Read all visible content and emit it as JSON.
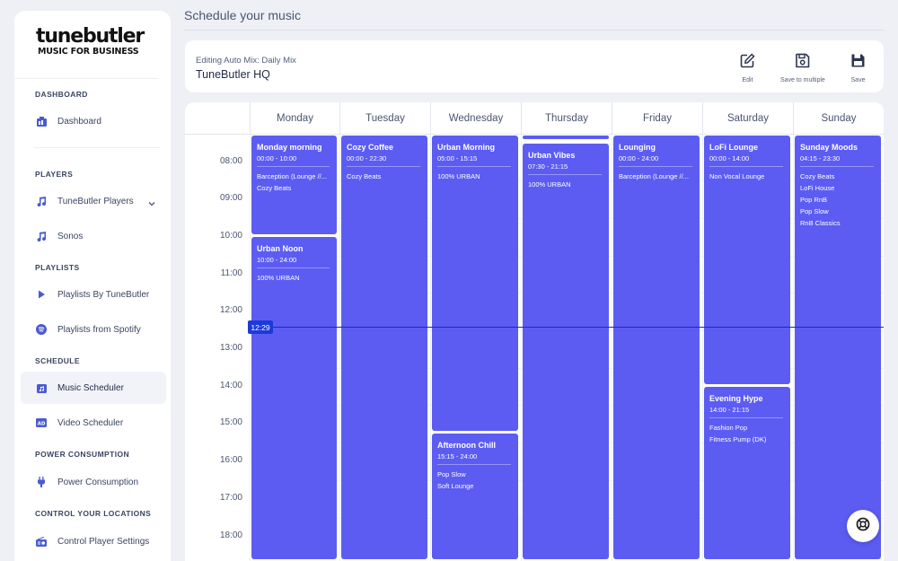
{
  "logo": {
    "line1": "tunebutler",
    "line2": "MUSIC FOR BUSINESS"
  },
  "sidebar": {
    "sections": [
      {
        "title": "DASHBOARD"
      },
      {
        "title": "PLAYERS"
      },
      {
        "title": "PLAYLISTS"
      },
      {
        "title": "SCHEDULE"
      },
      {
        "title": "POWER CONSUMPTION"
      },
      {
        "title": "CONTROL YOUR LOCATIONS"
      }
    ],
    "items": [
      {
        "label": "Dashboard",
        "icon": "dashboard-icon"
      },
      {
        "label": "TuneButler Players",
        "icon": "music-note-icon"
      },
      {
        "label": "Sonos",
        "icon": "music-note-icon"
      },
      {
        "label": "Playlists By TuneButler",
        "icon": "play-icon"
      },
      {
        "label": "Playlists from Spotify",
        "icon": "spotify-icon"
      },
      {
        "label": "Music Scheduler",
        "icon": "music-scheduler-icon",
        "active": true
      },
      {
        "label": "Video Scheduler",
        "icon": "ad-icon"
      },
      {
        "label": "Power Consumption",
        "icon": "plug-icon"
      },
      {
        "label": "Control Player Settings",
        "icon": "radio-icon"
      }
    ]
  },
  "header": {
    "title": "Schedule your music"
  },
  "editor": {
    "subtitle": "Editing Auto Mix: Daily Mix",
    "location": "TuneButler HQ",
    "actions": [
      {
        "label": "Edit",
        "icon": "edit-icon"
      },
      {
        "label": "Save to multiple",
        "icon": "save-multiple-icon"
      },
      {
        "label": "Save",
        "icon": "save-icon"
      }
    ]
  },
  "calendar": {
    "days": [
      "Monday",
      "Tuesday",
      "Wednesday",
      "Thursday",
      "Friday",
      "Saturday",
      "Sunday"
    ],
    "hours": [
      "08:00",
      "09:00",
      "10:00",
      "11:00",
      "12:00",
      "13:00",
      "14:00",
      "15:00",
      "16:00",
      "17:00",
      "18:00"
    ],
    "now": "12:29",
    "accent": "#5c5cf3",
    "events": [
      {
        "day": 0,
        "start": 0.0,
        "end": 10.0,
        "title": "Monday morning",
        "time": "00:00 - 10:00",
        "playlists": [
          "Barception (Lounge //...",
          "Cozy Beats"
        ]
      },
      {
        "day": 0,
        "start": 10.0,
        "end": 24.0,
        "title": "Urban Noon",
        "time": "10:00 - 24:00",
        "playlists": [
          "100% URBAN"
        ]
      },
      {
        "day": 1,
        "start": 0.0,
        "end": 22.5,
        "title": "Cozy Coffee",
        "time": "00:00 - 22:30",
        "playlists": [
          "Cozy Beats"
        ]
      },
      {
        "day": 2,
        "start": 5.0,
        "end": 15.25,
        "title": "Urban Morning",
        "time": "05:00 - 15:15",
        "playlists": [
          "100% URBAN"
        ]
      },
      {
        "day": 2,
        "start": 15.25,
        "end": 24.0,
        "title": "Afternoon Chill",
        "time": "15:15 - 24:00",
        "playlists": [
          "Pop Slow",
          "Soft Lounge"
        ]
      },
      {
        "day": 3,
        "start": 0.0,
        "end": 7.4,
        "title": "",
        "time": "",
        "playlists": []
      },
      {
        "day": 3,
        "start": 7.5,
        "end": 21.25,
        "title": "Urban Vibes",
        "time": "07:30 - 21:15",
        "playlists": [
          "100% URBAN"
        ]
      },
      {
        "day": 4,
        "start": 0.0,
        "end": 24.0,
        "title": "Lounging",
        "time": "00:00 - 24:00",
        "playlists": [
          "Barception (Lounge //..."
        ]
      },
      {
        "day": 5,
        "start": 0.0,
        "end": 14.0,
        "title": "LoFi Lounge",
        "time": "00:00 - 14:00",
        "playlists": [
          "Non Vocal Lounge"
        ]
      },
      {
        "day": 5,
        "start": 14.0,
        "end": 21.25,
        "title": "Evening Hype",
        "time": "14:00 - 21:15",
        "playlists": [
          "Fashion Pop",
          "Fitness Pump (DK)"
        ]
      },
      {
        "day": 6,
        "start": 4.25,
        "end": 23.5,
        "title": "Sunday Moods",
        "time": "04:15 - 23:30",
        "playlists": [
          "Cozy Beats",
          "LoFi House",
          "Pop RnB",
          "Pop Slow",
          "RnB Classics"
        ]
      }
    ]
  },
  "help": {
    "icon": "lifebuoy-icon"
  }
}
